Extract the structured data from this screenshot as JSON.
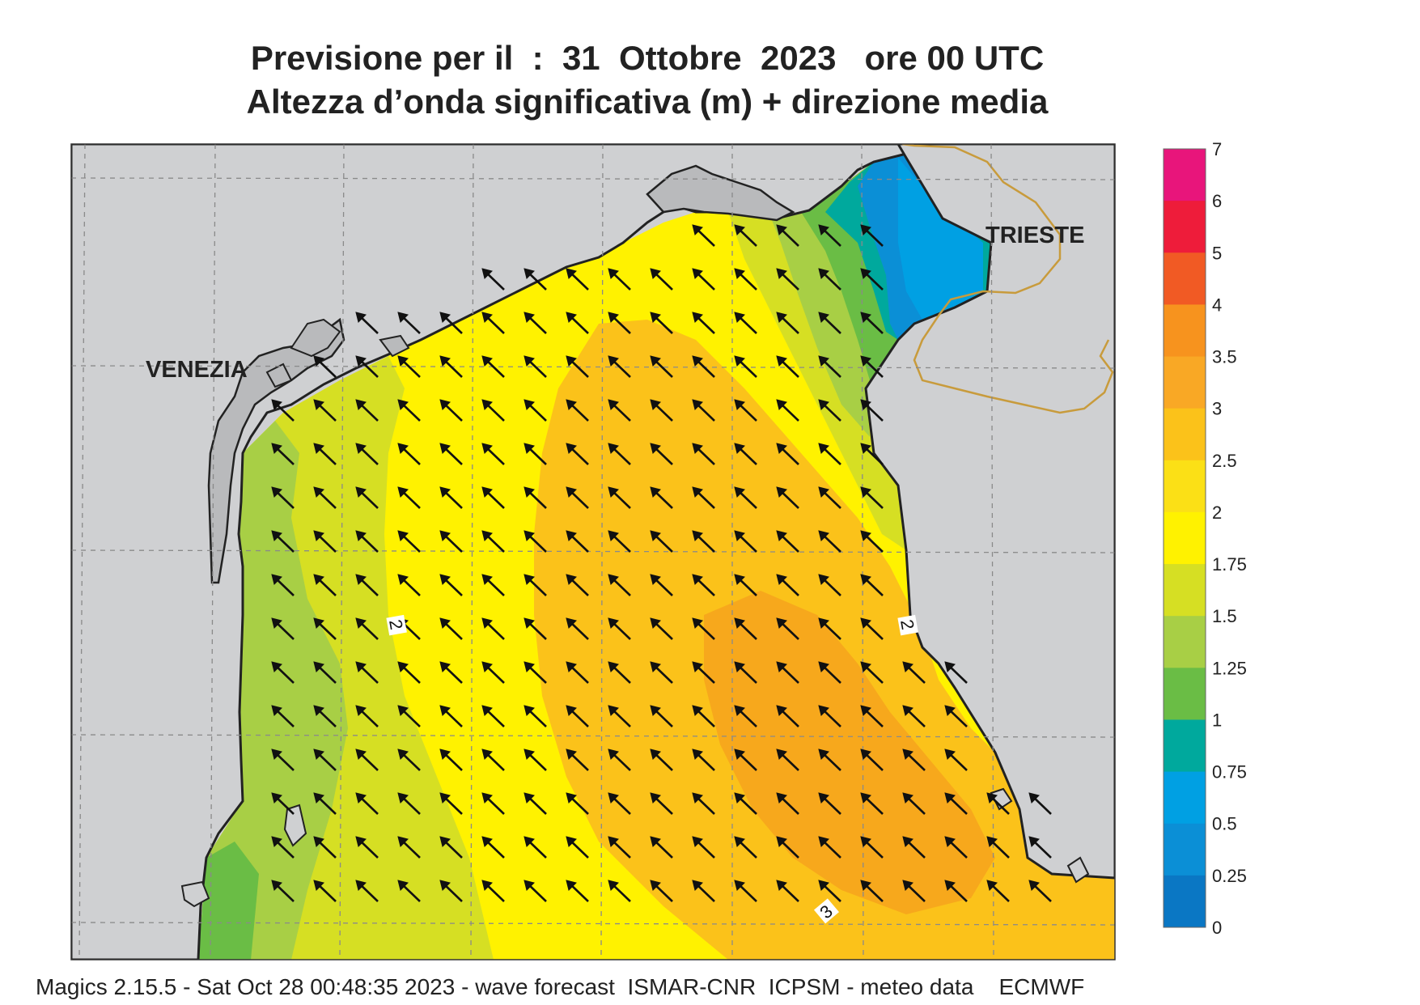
{
  "header": {
    "title_line1": "Previsione per il  :  31  Ottobre  2023   ore 00 UTC",
    "title_line2": "Altezza d’onda significativa (m) + direzione media"
  },
  "map": {
    "cities": [
      {
        "name": "VENEZIA"
      },
      {
        "name": "TRIESTE"
      }
    ],
    "contour_labels": [
      "2",
      "2",
      "3"
    ],
    "arrow_direction": "north-west",
    "colors": {
      "land": "#cfd0d2",
      "coast": "#222222",
      "border": "#c89b3c",
      "grid": "#8a8a8a"
    }
  },
  "colorbar": {
    "levels": [
      {
        "label": "7",
        "color": "#e8157b"
      },
      {
        "label": "6",
        "color": "#ee1c3a"
      },
      {
        "label": "5",
        "color": "#f15a24"
      },
      {
        "label": "4",
        "color": "#f7931e"
      },
      {
        "label": "3.5",
        "color": "#f9a825"
      },
      {
        "label": "3",
        "color": "#fbc21a"
      },
      {
        "label": "2.5",
        "color": "#fbe016"
      },
      {
        "label": "2",
        "color": "#fff200"
      },
      {
        "label": "1.75",
        "color": "#d6df23"
      },
      {
        "label": "1.5",
        "color": "#a8cf45"
      },
      {
        "label": "1.25",
        "color": "#6abd45"
      },
      {
        "label": "1",
        "color": "#00a99d"
      },
      {
        "label": "0.75",
        "color": "#00a0e3"
      },
      {
        "label": "0.5",
        "color": "#0b8fd6"
      },
      {
        "label": "0.25",
        "color": "#0a77c4"
      },
      {
        "label": "0",
        "color": "#0c5fae"
      }
    ]
  },
  "footer": {
    "text": "Magics 2.15.5 - Sat Oct 28 00:48:35 2023 - wave forecast  ISMAR-CNR  ICPSM - meteo data    ECMWF"
  }
}
